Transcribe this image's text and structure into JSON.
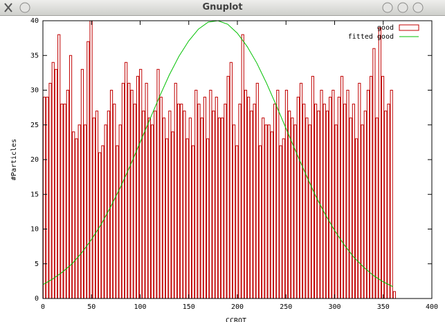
{
  "window": {
    "title": "Gnuplot"
  },
  "chart_data": {
    "type": "histogram",
    "xlabel": "CCROT",
    "ylabel": "#Particles",
    "xlim": [
      0,
      400
    ],
    "ylim": [
      0,
      40
    ],
    "xticks": [
      0,
      50,
      100,
      150,
      200,
      250,
      300,
      350,
      400
    ],
    "yticks": [
      0,
      5,
      10,
      15,
      20,
      25,
      30,
      35,
      40
    ],
    "legend": "top right",
    "histogram": {
      "name": "good",
      "color": "#c00000",
      "bins": [
        0,
        3,
        6,
        9,
        12,
        15,
        18,
        21,
        24,
        27,
        30,
        33,
        36,
        39,
        42,
        45,
        48,
        51,
        54,
        57,
        60,
        63,
        66,
        69,
        72,
        75,
        78,
        81,
        84,
        87,
        90,
        93,
        96,
        99,
        102,
        105,
        108,
        111,
        114,
        117,
        120,
        123,
        126,
        129,
        132,
        135,
        138,
        141,
        144,
        147,
        150,
        153,
        156,
        159,
        162,
        165,
        168,
        171,
        174,
        177,
        180,
        183,
        186,
        189,
        192,
        195,
        198,
        201,
        204,
        207,
        210,
        213,
        216,
        219,
        222,
        225,
        228,
        231,
        234,
        237,
        240,
        243,
        246,
        249,
        252,
        255,
        258,
        261,
        264,
        267,
        270,
        273,
        276,
        279,
        282,
        285,
        288,
        291,
        294,
        297,
        300,
        303,
        306,
        309,
        312,
        315,
        318,
        321,
        324,
        327,
        330,
        333,
        336,
        339,
        342,
        345,
        348,
        351,
        354,
        357,
        360,
        363
      ],
      "counts": [
        29,
        29,
        31,
        34,
        33,
        38,
        28,
        28,
        30,
        35,
        24,
        23,
        25,
        33,
        25,
        37,
        40,
        26,
        27,
        21,
        22,
        25,
        27,
        30,
        28,
        22,
        25,
        31,
        34,
        31,
        30,
        28,
        32,
        33,
        27,
        31,
        26,
        25,
        27,
        33,
        29,
        26,
        23,
        27,
        24,
        31,
        28,
        28,
        27,
        23,
        26,
        22,
        30,
        28,
        26,
        29,
        23,
        30,
        27,
        29,
        26,
        26,
        28,
        32,
        34,
        25,
        22,
        28,
        38,
        30,
        29,
        27,
        28,
        31,
        22,
        26,
        25,
        25,
        24,
        28,
        30,
        22,
        23,
        30,
        27,
        26,
        25,
        29,
        31,
        28,
        26,
        25,
        32,
        28,
        27,
        30,
        28,
        27,
        29,
        30,
        25,
        29,
        32,
        28,
        30,
        26,
        28,
        23,
        31,
        25,
        27,
        30,
        32,
        36,
        26,
        39,
        32,
        27,
        28,
        30,
        1
      ]
    },
    "fit": {
      "name": "fitted good",
      "color": "#00c000",
      "x": [
        0,
        10,
        20,
        30,
        40,
        50,
        60,
        70,
        80,
        90,
        100,
        110,
        120,
        130,
        140,
        150,
        160,
        170,
        180,
        190,
        200,
        210,
        220,
        230,
        240,
        250,
        260,
        270,
        280,
        290,
        300,
        310,
        320,
        330,
        340,
        350,
        360
      ],
      "values": [
        2.0,
        2.8,
        3.8,
        5.0,
        6.6,
        8.5,
        10.7,
        13.3,
        16.1,
        19.2,
        22.5,
        25.8,
        29.1,
        32.2,
        34.9,
        37.1,
        38.8,
        39.8,
        40.0,
        39.5,
        38.2,
        36.3,
        33.9,
        31.0,
        27.8,
        24.5,
        21.2,
        18.0,
        14.9,
        12.2,
        9.8,
        7.7,
        5.9,
        4.5,
        3.3,
        2.4,
        1.7
      ]
    }
  }
}
